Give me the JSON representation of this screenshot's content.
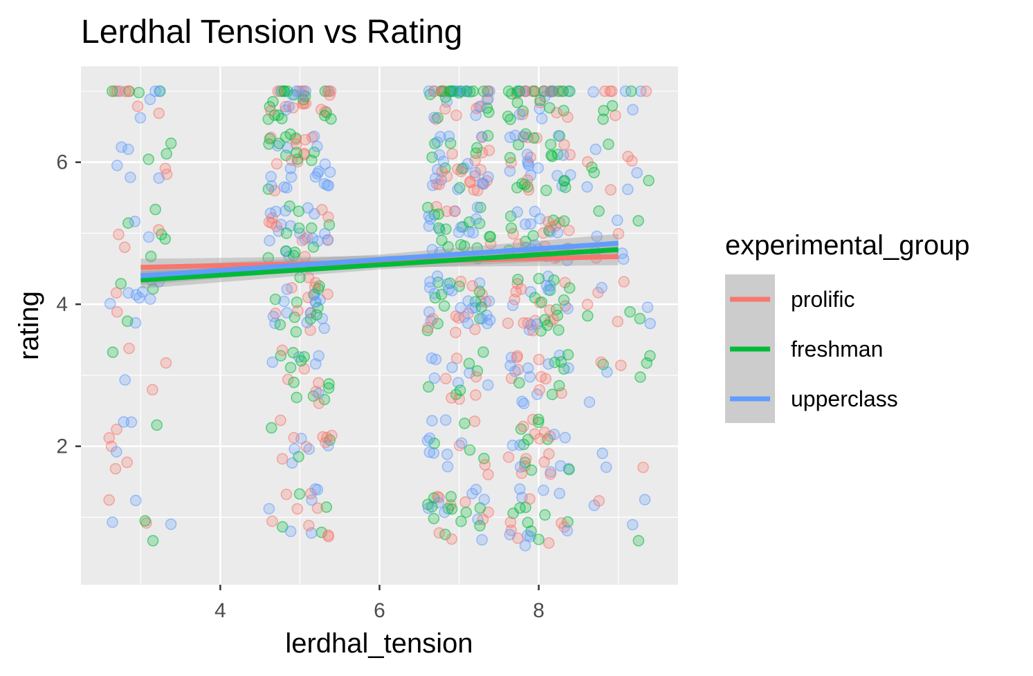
{
  "chart_data": {
    "type": "scatter",
    "title": "Lerdhal Tension vs Rating",
    "xlabel": "lerdhal_tension",
    "ylabel": "rating",
    "xlim": [
      2.25,
      9.75
    ],
    "ylim": [
      0.05,
      7.35
    ],
    "x_ticks": [
      4,
      6,
      8
    ],
    "x_minor_ticks": [
      3,
      5,
      7,
      9
    ],
    "y_ticks": [
      2,
      4,
      6
    ],
    "y_minor_ticks": [
      1,
      3,
      5,
      7
    ],
    "tick_labels": {
      "x": [
        "4",
        "6",
        "8"
      ],
      "y": [
        "2",
        "4",
        "6"
      ]
    },
    "grid": true,
    "panel_background": "#ebebeb",
    "point_alpha": 0.25,
    "jitter_x": 0.4,
    "jitter_y": 0.4,
    "x_clusters": [
      3,
      5,
      7,
      8,
      9
    ],
    "legend": {
      "title": "experimental_group",
      "position": "right"
    },
    "series": [
      {
        "name": "prolific",
        "color": "#F8766D",
        "trend": {
          "x": [
            3,
            9
          ],
          "y": [
            4.52,
            4.67
          ]
        },
        "band": {
          "x": [
            3,
            6,
            9
          ],
          "lower": [
            4.4,
            4.52,
            4.55
          ],
          "upper": [
            4.64,
            4.68,
            4.79
          ]
        }
      },
      {
        "name": "freshman",
        "color": "#00BA38",
        "trend": {
          "x": [
            3,
            9
          ],
          "y": [
            4.34,
            4.77
          ]
        },
        "band": {
          "x": [
            3,
            6,
            9
          ],
          "lower": [
            4.22,
            4.49,
            4.65
          ],
          "upper": [
            4.46,
            4.63,
            4.89
          ]
        }
      },
      {
        "name": "upperclass",
        "color": "#619CFF",
        "trend": {
          "x": [
            3,
            9
          ],
          "y": [
            4.4,
            4.86
          ]
        },
        "band": {
          "x": [
            3,
            6,
            9
          ],
          "lower": [
            4.27,
            4.56,
            4.73
          ],
          "upper": [
            4.53,
            4.7,
            4.99
          ]
        }
      }
    ]
  }
}
